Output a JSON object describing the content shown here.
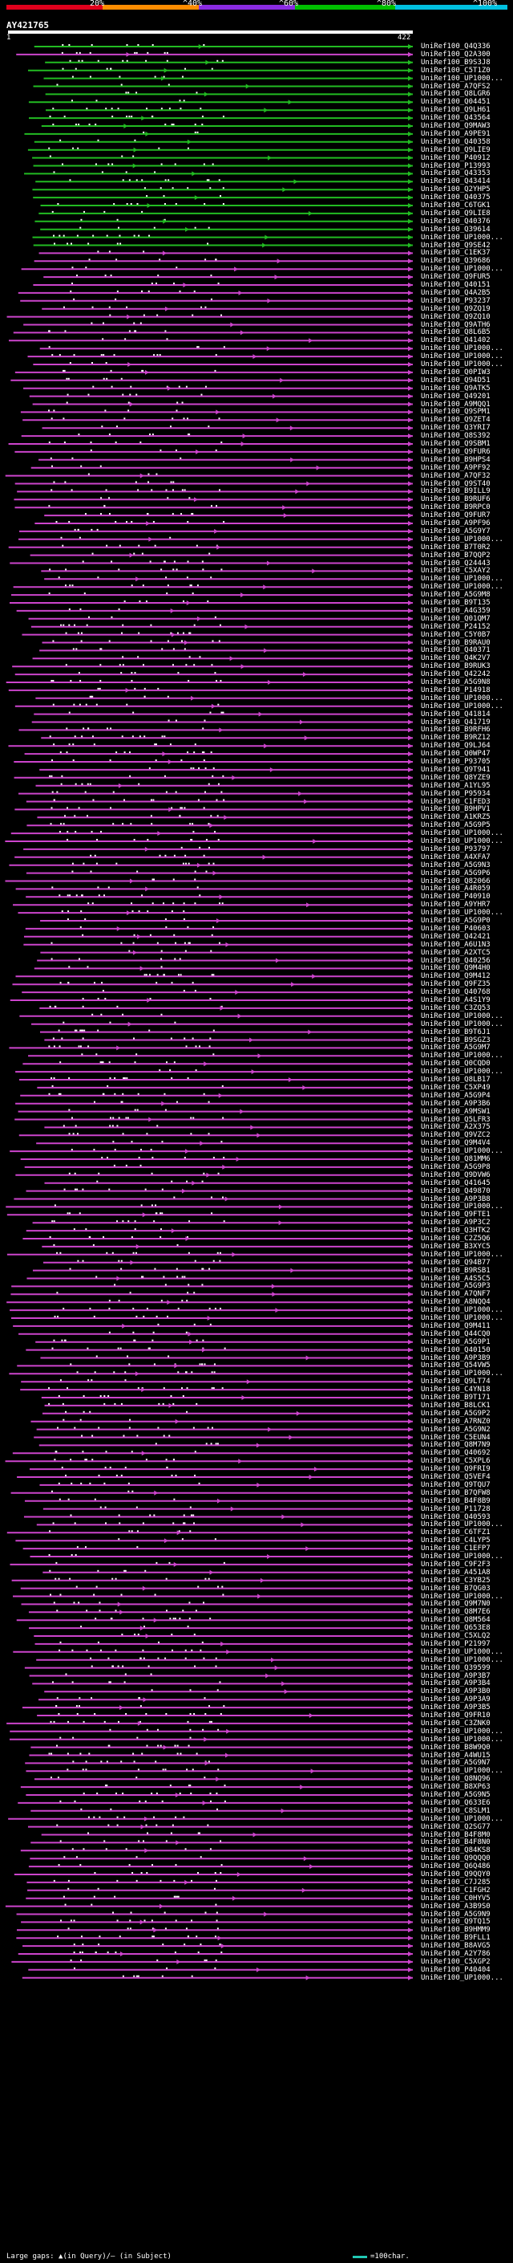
{
  "query": {
    "id": "AY421765",
    "start": "1",
    "end": "422"
  },
  "scale": [
    {
      "label": "20%",
      "color": "#e0001c"
    },
    {
      "label": "^40%",
      "color": "#ff8c00"
    },
    {
      "label": "^60%",
      "color": "#8a2be2"
    },
    {
      "label": "^80%",
      "color": "#00c000"
    },
    {
      "label": "^100%",
      "color": "#00c0e0"
    }
  ],
  "colors": {
    "identity_60_80": "#cc44cc",
    "identity_80_100": "#22bb22",
    "gap_query": "#ff8c00",
    "label": "#ffffff"
  },
  "footer": {
    "legend_text": "Large gaps: ▲(in Query)/– (in Subject)",
    "key_label": "=100char."
  },
  "chart_data": {
    "type": "alignment-overview",
    "hit_labels": [
      "UniRef100_Q4Q336",
      "UniRef100_Q2A300",
      "UniRef100_B9S3J8",
      "UniRef100_C5T1Z0",
      "UniRef100_UP1000...",
      "UniRef100_A7QFS2",
      "UniRef100_Q8LGR6",
      "UniRef100_Q04451",
      "UniRef100_Q9LH61",
      "UniRef100_Q43564",
      "UniRef100_Q9MAW3",
      "UniRef100_A9PE91",
      "UniRef100_Q40358",
      "UniRef100_Q9LIE9",
      "UniRef100_P40912",
      "UniRef100_P13993",
      "UniRef100_Q43353",
      "UniRef100_Q43414",
      "UniRef100_Q2YHP5",
      "UniRef100_Q40375",
      "UniRef100_C6TGK1",
      "UniRef100_Q9LIE8",
      "UniRef100_Q40376",
      "UniRef100_Q39614",
      "UniRef100_UP1000...",
      "UniRef100_Q9SE42",
      "UniRef100_C1EK37",
      "UniRef100_Q39686",
      "UniRef100_UP1000...",
      "UniRef100_Q9FUR5",
      "UniRef100_Q40151",
      "UniRef100_Q4A2B5",
      "UniRef100_P93237",
      "UniRef100_Q9ZQ19",
      "UniRef100_Q9ZQ10",
      "UniRef100_Q9ATH6",
      "UniRef100_Q8L6B5",
      "UniRef100_Q41402",
      "UniRef100_UP1000...",
      "UniRef100_UP1000...",
      "UniRef100_UP1000...",
      "UniRef100_Q0PIW3",
      "UniRef100_Q94D51",
      "UniRef100_Q9ATK5",
      "UniRef100_Q49201",
      "UniRef100_A9MQQ1",
      "UniRef100_Q9SPM1",
      "UniRef100_Q9ZET4",
      "UniRef100_Q3YRI7",
      "UniRef100_Q8S392",
      "UniRef100_Q9SBM1",
      "UniRef100_Q9FUR6",
      "UniRef100_B9HPS4",
      "UniRef100_A9PF92",
      "UniRef100_A7QF32",
      "UniRef100_Q9ST40",
      "UniRef100_B9ILL9",
      "UniRef100_B9RUF6",
      "UniRef100_B9RPC0",
      "UniRef100_Q9FUR7",
      "UniRef100_A9PF96",
      "UniRef100_A5G9Y7",
      "UniRef100_UP1000...",
      "UniRef100_B7T0R2",
      "UniRef100_B7QQP2",
      "UniRef100_Q24443",
      "UniRef100_C5XAY2",
      "UniRef100_UP1000...",
      "UniRef100_UP1000...",
      "UniRef100_A5G9M8",
      "UniRef100_B9T135",
      "UniRef100_A4G359",
      "UniRef100_Q01QM7",
      "UniRef100_P24152",
      "UniRef100_C5Y0B7",
      "UniRef100_B9RAU0",
      "UniRef100_Q40371",
      "UniRef100_Q4K2V7",
      "UniRef100_B9RUK3",
      "UniRef100_Q42242",
      "UniRef100_A5G9N8",
      "UniRef100_P14918",
      "UniRef100_UP1000...",
      "UniRef100_UP1000...",
      "UniRef100_Q41814",
      "UniRef100_Q41719",
      "UniRef100_B9RFH6",
      "UniRef100_B9RZ12",
      "UniRef100_Q9LJ64",
      "UniRef100_Q0WP47",
      "UniRef100_P93705",
      "UniRef100_Q9T941",
      "UniRef100_Q8YZE9",
      "UniRef100_A1YL95",
      "UniRef100_P95934",
      "UniRef100_C1FED3",
      "UniRef100_B9HPV1",
      "UniRef100_A1KRZ5",
      "UniRef100_A5G9P5",
      "UniRef100_UP1000...",
      "UniRef100_UP1000...",
      "UniRef100_P93797",
      "UniRef100_A4XFA7",
      "UniRef100_A5G9N3",
      "UniRef100_A5G9P6",
      "UniRef100_Q82066",
      "UniRef100_A4R059",
      "UniRef100_P40910",
      "UniRef100_A9YHR7",
      "UniRef100_UP1000...",
      "UniRef100_A5G9P0",
      "UniRef100_P40603",
      "UniRef100_Q42421",
      "UniRef100_A6U1N3",
      "UniRef100_A2XTC5",
      "UniRef100_Q40256",
      "UniRef100_Q9M4H0",
      "UniRef100_Q9M412",
      "UniRef100_Q9FZ35",
      "UniRef100_Q40768",
      "UniRef100_A4S1Y9",
      "UniRef100_C3ZQ53",
      "UniRef100_UP1000...",
      "UniRef100_UP1000...",
      "UniRef100_B9T6J1",
      "UniRef100_B9SGZ3",
      "UniRef100_A5G9M7",
      "UniRef100_UP1000...",
      "UniRef100_Q0CQD0",
      "UniRef100_UP1000...",
      "UniRef100_Q8LB17",
      "UniRef100_C5XP49",
      "UniRef100_A5G9P4",
      "UniRef100_A9P3B6",
      "UniRef100_A9MSW1",
      "UniRef100_Q5LFR3",
      "UniRef100_A2X375",
      "UniRef100_Q9VZC2",
      "UniRef100_Q9M4V4",
      "UniRef100_UP1000...",
      "UniRef100_Q81MM6",
      "UniRef100_A5G9P8",
      "UniRef100_Q9DVW6",
      "UniRef100_Q41645",
      "UniRef100_Q49870",
      "UniRef100_A9P3B8",
      "UniRef100_UP1000...",
      "UniRef100_Q9FTE1",
      "UniRef100_A9P3C2",
      "UniRef100_Q3HTK2",
      "UniRef100_C2Z5Q6",
      "UniRef100_B3XYC5",
      "UniRef100_UP1000...",
      "UniRef100_Q94B77",
      "UniRef100_B9RSB1",
      "UniRef100_A4S5C5",
      "UniRef100_A5G9P3",
      "UniRef100_A7QNF7",
      "UniRef100_A8NQQ4",
      "UniRef100_UP1000...",
      "UniRef100_UP1000...",
      "UniRef100_Q9M411",
      "UniRef100_Q44CQ0",
      "UniRef100_A5G9P1",
      "UniRef100_Q40150",
      "UniRef100_A9P3B9",
      "UniRef100_Q54VW5",
      "UniRef100_UP1000...",
      "UniRef100_Q9LT74",
      "UniRef100_C4YN18",
      "UniRef100_B9T171",
      "UniRef100_B8LCK1",
      "UniRef100_A5G9P2",
      "UniRef100_A7RNZ0",
      "UniRef100_A5G9N2",
      "UniRef100_C5EUN4",
      "UniRef100_Q8M7N9",
      "UniRef100_Q40692",
      "UniRef100_C5XPL6",
      "UniRef100_Q9FRI9",
      "UniRef100_Q5VEF4",
      "UniRef100_Q9TQU7",
      "UniRef100_B7QFW8",
      "UniRef100_B4F8B9",
      "UniRef100_P11728",
      "UniRef100_Q40593",
      "UniRef100_UP1000...",
      "UniRef100_C6TFZ1",
      "UniRef100_C4LYP5",
      "UniRef100_C1EFP7",
      "UniRef100_UP1000...",
      "UniRef100_C9F2F3",
      "UniRef100_A451A8",
      "UniRef100_C3YB25",
      "UniRef100_B7QG03",
      "UniRef100_UP1000...",
      "UniRef100_Q9M7N0",
      "UniRef100_Q8M7E6",
      "UniRef100_Q8M564",
      "UniRef100_Q653E8",
      "UniRef100_C5XLQ2",
      "UniRef100_P21997",
      "UniRef100_UP1000...",
      "UniRef100_UP1000...",
      "UniRef100_Q39599",
      "UniRef100_A9P3B7",
      "UniRef100_A9P3B4",
      "UniRef100_A9P3B0",
      "UniRef100_A9P3A9",
      "UniRef100_A9P3B5",
      "UniRef100_Q9FR10",
      "UniRef100_C3ZNK0",
      "UniRef100_UP1000...",
      "UniRef100_UP1000...",
      "UniRef100_B8W9Q0",
      "UniRef100_A4WU15",
      "UniRef100_A5G9N7",
      "UniRef100_UP1000...",
      "UniRef100_Q8NQ96",
      "UniRef100_B8XP63",
      "UniRef100_A5G9N5",
      "UniRef100_Q633E6",
      "UniRef100_C8SLM1",
      "UniRef100_UP1000...",
      "UniRef100_Q2SG77",
      "UniRef100_B4F8M0",
      "UniRef100_B4F8N0",
      "UniRef100_Q84KS8",
      "UniRef100_Q9QQQ0",
      "UniRef100_Q6Q486",
      "UniRef100_Q9QQY0",
      "UniRef100_C7J285",
      "UniRef100_C1FGH2",
      "UniRef100_C0HYV5",
      "UniRef100_A3B9S0",
      "UniRef100_A5G9N9",
      "UniRef100_Q9TQ15",
      "UniRef100_B9HMM9",
      "UniRef100_B9FLL1",
      "UniRef100_B8AVG5",
      "UniRef100_A2Y786",
      "UniRef100_C5XGP2",
      "UniRef100_P40404",
      "UniRef100_UP1000..."
    ]
  }
}
